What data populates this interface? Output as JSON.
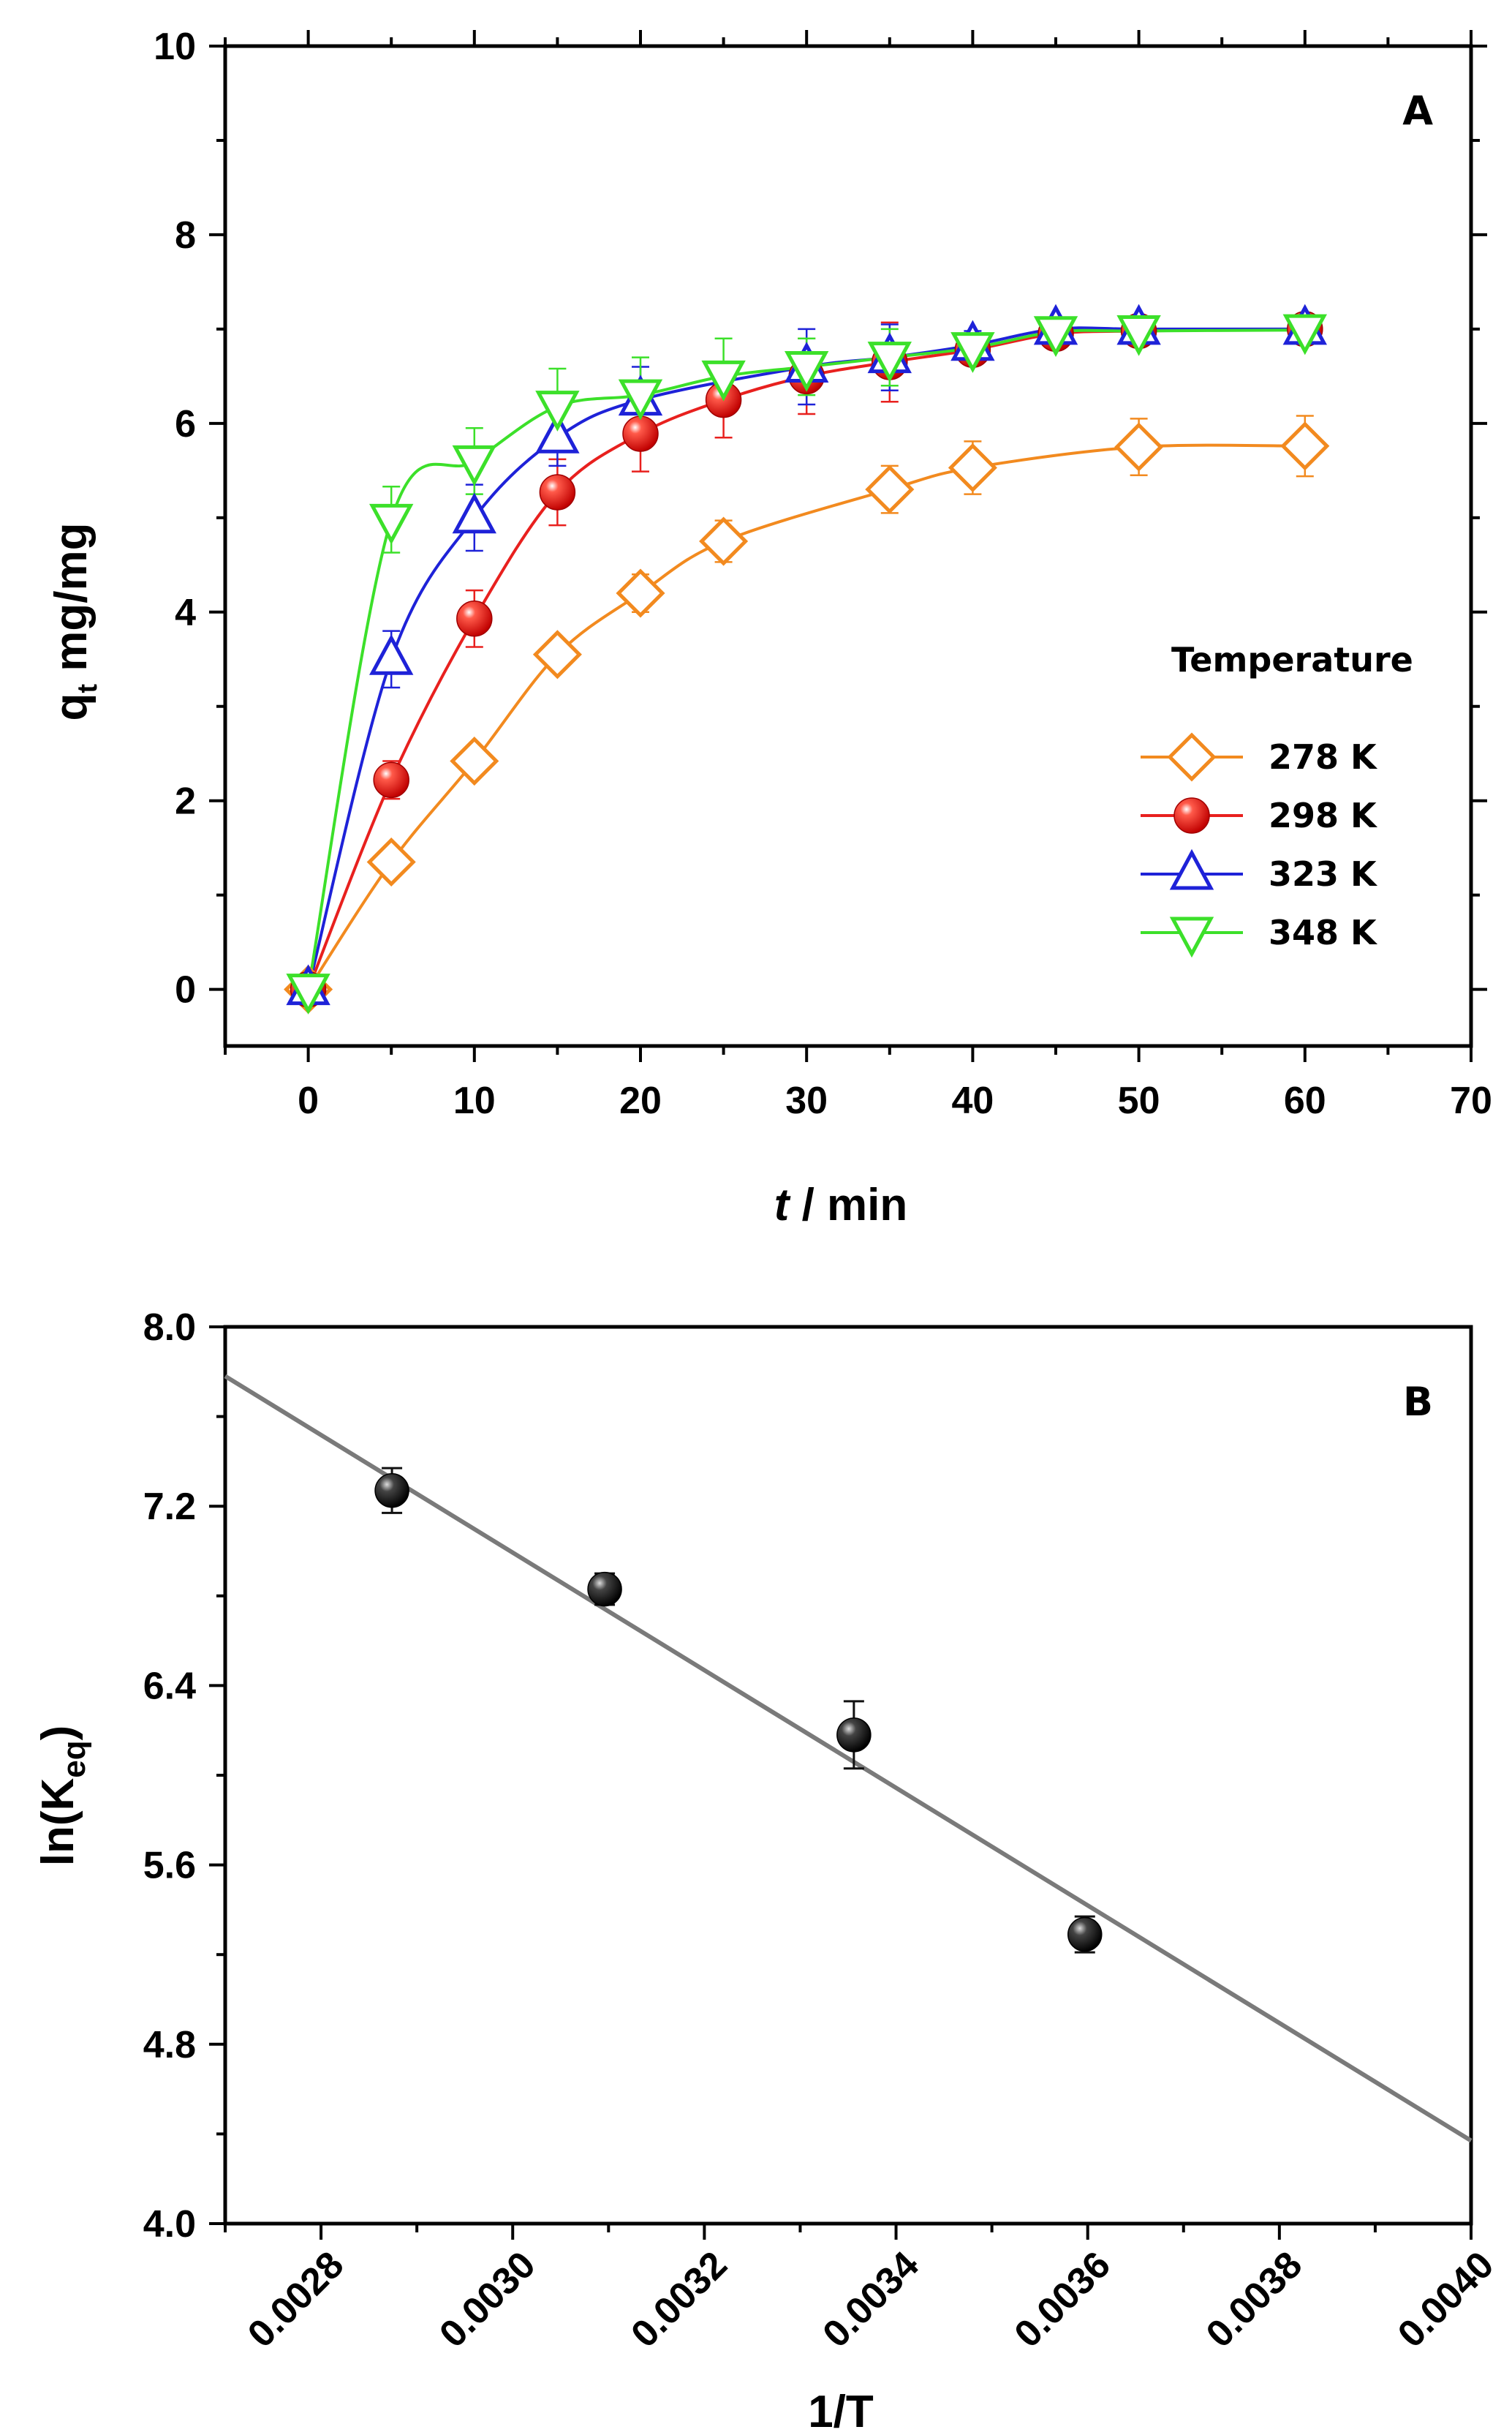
{
  "chart_data": [
    {
      "type": "scatter",
      "panel_label": "A",
      "xlabel_italic": "t",
      "xlabel_rest": " / min",
      "ylabel_main": "q",
      "ylabel_sub": "t",
      "ylabel_rest": " mg/mg",
      "xlim": [
        -5,
        70
      ],
      "ylim": [
        -0.6,
        10
      ],
      "xticks": [
        0,
        10,
        20,
        30,
        40,
        50,
        60,
        70
      ],
      "yticks": [
        0,
        2,
        4,
        6,
        8,
        10
      ],
      "legend_title": "Temperature",
      "legend_position": "center-right",
      "series": [
        {
          "name": "278 K",
          "color": "#F28A1F",
          "marker": "diamond-open",
          "x": [
            0,
            5,
            10,
            15,
            20,
            25,
            35,
            40,
            50,
            60
          ],
          "y": [
            0,
            1.35,
            2.42,
            3.55,
            4.2,
            4.75,
            5.3,
            5.53,
            5.75,
            5.76
          ],
          "err": [
            0.08,
            0.1,
            0.12,
            0.15,
            0.2,
            0.22,
            0.25,
            0.28,
            0.3,
            0.32
          ]
        },
        {
          "name": "298 K",
          "color": "#E8201E",
          "marker": "sphere",
          "x": [
            0,
            5,
            10,
            15,
            20,
            25,
            30,
            35,
            40,
            45,
            50,
            60
          ],
          "y": [
            0,
            2.22,
            3.93,
            5.27,
            5.89,
            6.25,
            6.5,
            6.65,
            6.78,
            6.95,
            6.98,
            7.0
          ],
          "err": [
            0.08,
            0.2,
            0.3,
            0.35,
            0.4,
            0.4,
            0.4,
            0.42,
            0.15,
            0.12,
            0.12,
            0.12
          ]
        },
        {
          "name": "323 K",
          "color": "#1E22D8",
          "marker": "triangle-up-open",
          "x": [
            0,
            5,
            10,
            15,
            20,
            30,
            35,
            40,
            45,
            50,
            60
          ],
          "y": [
            0,
            3.5,
            5.0,
            5.85,
            6.25,
            6.6,
            6.7,
            6.83,
            7.0,
            7.0,
            7.0
          ],
          "err": [
            0.08,
            0.3,
            0.35,
            0.3,
            0.35,
            0.4,
            0.35,
            0.15,
            0.1,
            0.1,
            0.1
          ]
        },
        {
          "name": "348 K",
          "color": "#3CE02A",
          "marker": "triangle-down-open",
          "x": [
            0,
            5,
            10,
            15,
            20,
            25,
            30,
            35,
            40,
            45,
            50,
            60
          ],
          "y": [
            0,
            4.98,
            5.6,
            6.18,
            6.3,
            6.5,
            6.6,
            6.7,
            6.8,
            6.97,
            6.98,
            6.99
          ],
          "err": [
            0.08,
            0.35,
            0.35,
            0.4,
            0.4,
            0.4,
            0.3,
            0.3,
            0.15,
            0.1,
            0.1,
            0.1
          ]
        }
      ]
    },
    {
      "type": "scatter",
      "panel_label": "B",
      "xlabel": "1/T",
      "ylabel_main": "ln(K",
      "ylabel_sub": "eq",
      "ylabel_rest": ")",
      "xlim": [
        0.0027,
        0.004
      ],
      "ylim": [
        4.0,
        8.0
      ],
      "xticks": [
        "0.0028",
        "0.0030",
        "0.0032",
        "0.0034",
        "0.0036",
        "0.0038",
        "0.0040"
      ],
      "yticks": [
        "4.0",
        "4.8",
        "5.6",
        "6.4",
        "7.2",
        "8.0"
      ],
      "points": {
        "x": [
          0.002874,
          0.003096,
          0.003356,
          0.003597
        ],
        "y": [
          7.27,
          6.83,
          6.18,
          5.29
        ],
        "err": [
          0.1,
          0.07,
          0.15,
          0.08
        ],
        "color": "#111111"
      },
      "fit_line": {
        "x": [
          0.0027,
          0.004
        ],
        "y": [
          7.78,
          4.37
        ],
        "color": "#7A7A7A"
      }
    }
  ]
}
